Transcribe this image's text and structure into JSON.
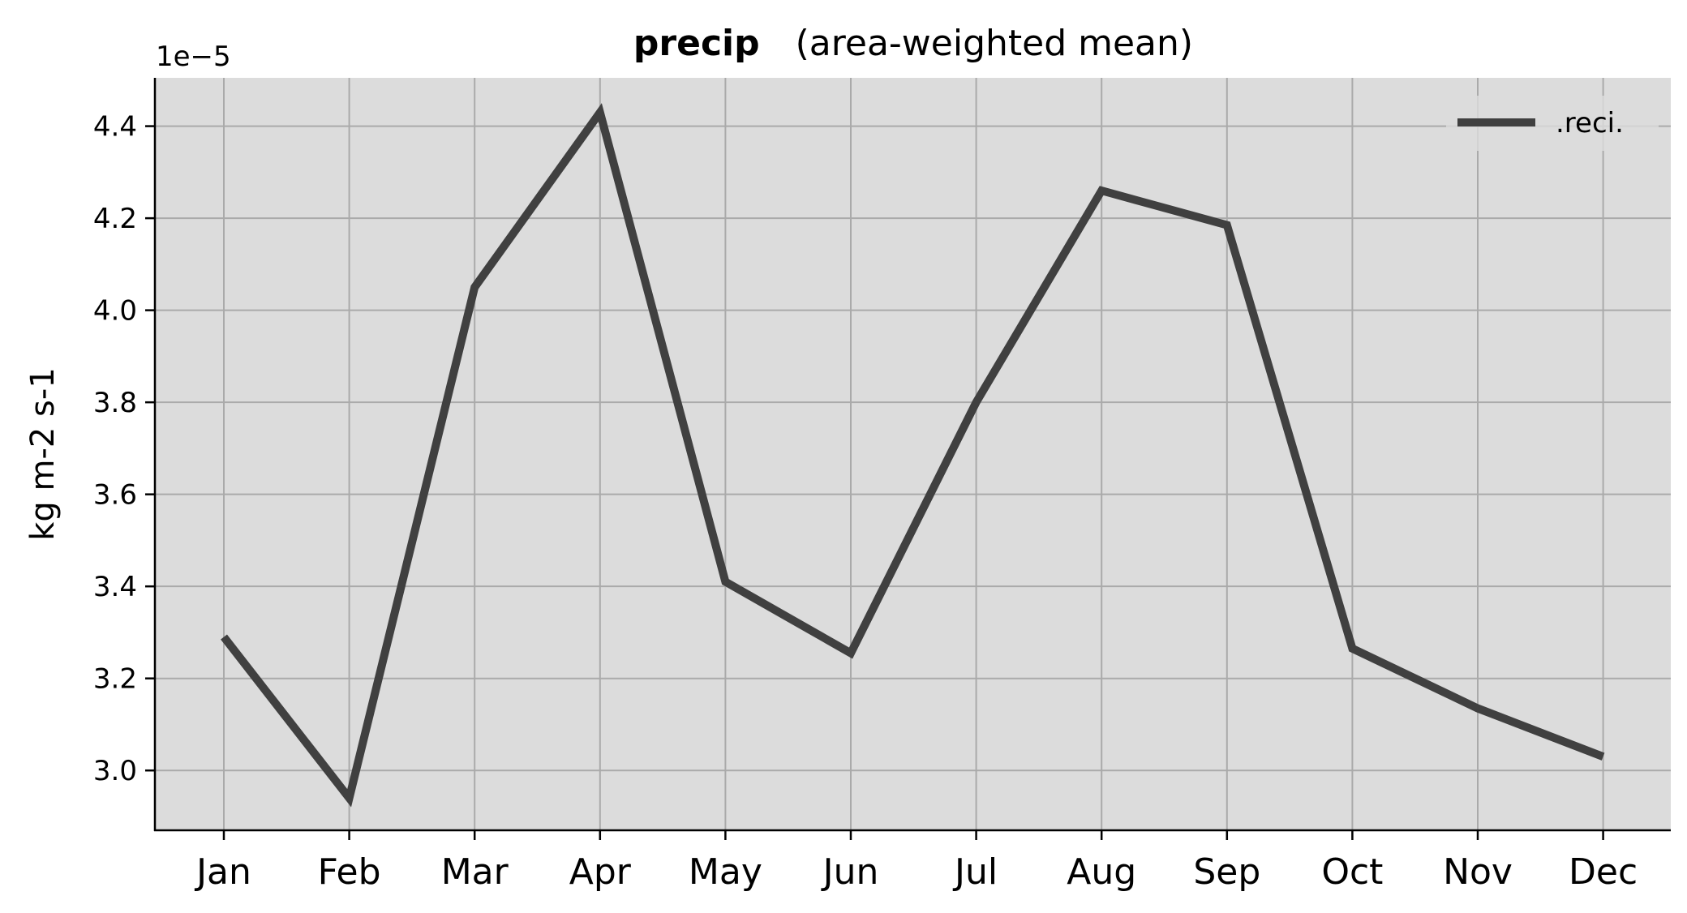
{
  "chart_data": {
    "type": "line",
    "title_main": "precip",
    "title_sub": "(area-weighted mean)",
    "ylabel": "kg m-2 s-1",
    "xlabel": "",
    "y_multiplier_label": "1e−5",
    "categories": [
      "Jan",
      "Feb",
      "Mar",
      "Apr",
      "May",
      "Jun",
      "Jul",
      "Aug",
      "Sep",
      "Oct",
      "Nov",
      "Dec"
    ],
    "series": [
      {
        "name": ".reci.",
        "values": [
          3.29,
          2.94,
          4.05,
          4.43,
          3.41,
          3.255,
          3.8,
          4.26,
          4.185,
          3.265,
          3.135,
          3.03
        ]
      }
    ],
    "ylim": [
      2.87,
      4.505
    ],
    "yticks": [
      3.0,
      3.2,
      3.4,
      3.6,
      3.8,
      4.0,
      4.2,
      4.4
    ],
    "ytick_labels": [
      "3.0",
      "3.2",
      "3.4",
      "3.6",
      "3.8",
      "4.0",
      "4.2",
      "4.4"
    ],
    "grid": true,
    "legend_position": "top-right",
    "colors": {
      "line": "#404040",
      "plot_background": "#dcdcdc",
      "grid": "#aaaaaa",
      "axis": "#000000"
    }
  }
}
